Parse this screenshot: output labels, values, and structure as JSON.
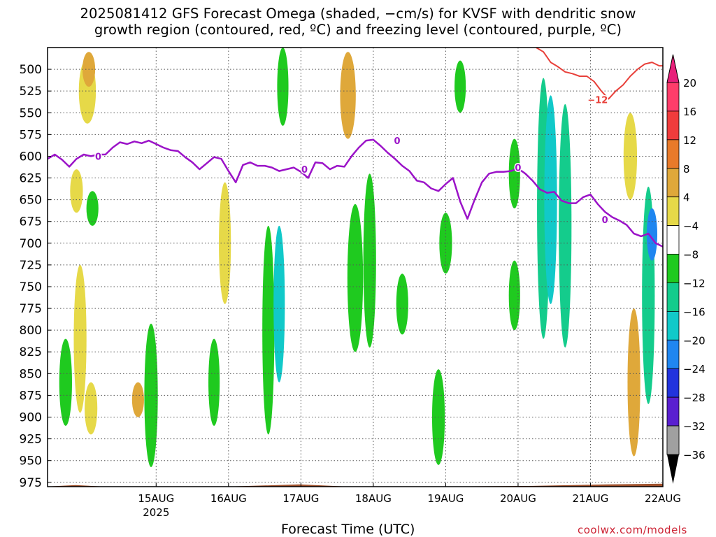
{
  "title": {
    "line1": "2025081412 GFS Forecast Omega (shaded, −cm/s) for KVSF with dendritic snow",
    "line2": "growth region (contoured, red, ºC) and freezing level (contoured, purple, ºC)"
  },
  "credit": "coolwx.com/models",
  "chart_data": {
    "type": "heatmap",
    "xlabel": "Forecast Time (UTC)",
    "ylabel": "",
    "x_ticks": [
      {
        "label": "15AUG",
        "sub": "2025",
        "day": 1
      },
      {
        "label": "16AUG",
        "sub": "",
        "day": 2
      },
      {
        "label": "17AUG",
        "sub": "",
        "day": 3
      },
      {
        "label": "18AUG",
        "sub": "",
        "day": 4
      },
      {
        "label": "19AUG",
        "sub": "",
        "day": 5
      },
      {
        "label": "20AUG",
        "sub": "",
        "day": 6
      },
      {
        "label": "21AUG",
        "sub": "",
        "day": 7
      },
      {
        "label": "22AUG",
        "sub": "",
        "day": 8
      }
    ],
    "xlim_days": [
      -0.5,
      8.0
    ],
    "ylim_hpa": [
      980,
      475
    ],
    "y_ticks": [
      500,
      525,
      550,
      575,
      600,
      625,
      650,
      675,
      700,
      725,
      750,
      775,
      800,
      825,
      850,
      875,
      900,
      925,
      950,
      975
    ],
    "grid": true,
    "colorbar": {
      "labels": [
        "20",
        "16",
        "12",
        "8",
        "4",
        "−4",
        "−8",
        "−12",
        "−16",
        "−20",
        "−24",
        "−28",
        "−32",
        "−36"
      ],
      "colors": [
        "#ff3d6a",
        "#f03c3c",
        "#e87a2a",
        "#dfa83a",
        "#e6d948",
        "#ffffff",
        "#1fca1f",
        "#14cc8c",
        "#11c9c9",
        "#1f86f0",
        "#2233dd",
        "#5a1fd0",
        "#9a10c8",
        "#a0a0a0"
      ],
      "top_arrow": "#e8207a",
      "bottom_arrow": "#000000"
    },
    "freezing_level": {
      "color": "#9b13c8",
      "label": "0",
      "label_points": [
        {
          "day": 0.2,
          "hpa": 600
        },
        {
          "day": 3.05,
          "hpa": 615
        },
        {
          "day": 4.33,
          "hpa": 582
        },
        {
          "day": 6.0,
          "hpa": 613
        },
        {
          "day": 7.2,
          "hpa": 673
        }
      ],
      "day": [
        -0.5,
        -0.4,
        -0.3,
        -0.2,
        -0.1,
        0.0,
        0.1,
        0.2,
        0.3,
        0.4,
        0.5,
        0.6,
        0.7,
        0.8,
        0.9,
        1.0,
        1.1,
        1.2,
        1.3,
        1.4,
        1.5,
        1.6,
        1.7,
        1.8,
        1.9,
        2.0,
        2.1,
        2.2,
        2.3,
        2.4,
        2.5,
        2.6,
        2.7,
        2.8,
        2.9,
        3.0,
        3.1,
        3.2,
        3.3,
        3.4,
        3.5,
        3.6,
        3.7,
        3.8,
        3.9,
        4.0,
        4.1,
        4.2,
        4.3,
        4.4,
        4.5,
        4.6,
        4.7,
        4.8,
        4.9,
        5.0,
        5.1,
        5.2,
        5.3,
        5.4,
        5.5,
        5.6,
        5.7,
        5.8,
        5.9,
        6.0,
        6.1,
        6.2,
        6.3,
        6.4,
        6.5,
        6.6,
        6.7,
        6.8,
        6.9,
        7.0,
        7.1,
        7.2,
        7.3,
        7.4,
        7.5,
        7.6,
        7.7,
        7.8,
        7.9,
        8.0
      ],
      "hpa": [
        603,
        598,
        604,
        612,
        603,
        598,
        600,
        598,
        598,
        590,
        584,
        586,
        583,
        585,
        582,
        586,
        590,
        593,
        594,
        601,
        607,
        615,
        608,
        601,
        603,
        617,
        630,
        610,
        607,
        611,
        611,
        613,
        617,
        615,
        613,
        618,
        625,
        607,
        608,
        615,
        611,
        612,
        600,
        590,
        582,
        581,
        588,
        596,
        603,
        611,
        617,
        628,
        630,
        637,
        640,
        632,
        625,
        652,
        672,
        650,
        630,
        620,
        618,
        618,
        617,
        614,
        620,
        628,
        638,
        642,
        641,
        651,
        654,
        654,
        647,
        644,
        655,
        664,
        670,
        674,
        679,
        689,
        692,
        689,
        700,
        704
      ]
    },
    "dgz_minus12": {
      "color": "#e8403a",
      "label": "−12",
      "label_points": [
        {
          "day": 7.1,
          "hpa": 535
        }
      ],
      "day": [
        6.25,
        6.35,
        6.45,
        6.55,
        6.65,
        6.75,
        6.85,
        6.95,
        7.05,
        7.15,
        7.25,
        7.35,
        7.45,
        7.55,
        7.65,
        7.75,
        7.85,
        7.95,
        8.0
      ],
      "hpa": [
        475,
        480,
        492,
        497,
        503,
        505,
        508,
        508,
        514,
        525,
        534,
        525,
        518,
        508,
        500,
        494,
        492,
        496,
        496
      ]
    },
    "surface_fill": "#a0522d",
    "omega_regions": [
      {
        "day": 0.05,
        "hpa": 525,
        "w": 0.12,
        "h": 75,
        "level": 4
      },
      {
        "day": 0.07,
        "hpa": 500,
        "w": 0.06,
        "h": 40,
        "level": 8
      },
      {
        "day": -0.1,
        "hpa": 640,
        "w": 0.06,
        "h": 50,
        "level": 4
      },
      {
        "day": 0.12,
        "hpa": 660,
        "w": 0.05,
        "h": 40,
        "level": -4
      },
      {
        "day": -0.25,
        "hpa": 860,
        "w": 0.06,
        "h": 100,
        "level": -4
      },
      {
        "day": -0.05,
        "hpa": 810,
        "w": 0.06,
        "h": 170,
        "level": 4
      },
      {
        "day": 0.1,
        "hpa": 890,
        "w": 0.06,
        "h": 60,
        "level": 4
      },
      {
        "day": 0.75,
        "hpa": 880,
        "w": 0.05,
        "h": 40,
        "level": 8
      },
      {
        "day": 0.93,
        "hpa": 875,
        "w": 0.07,
        "h": 165,
        "level": -4
      },
      {
        "day": 1.8,
        "hpa": 860,
        "w": 0.04,
        "h": 100,
        "level": -4
      },
      {
        "day": 1.95,
        "hpa": 700,
        "w": 0.05,
        "h": 140,
        "level": 4
      },
      {
        "day": 2.55,
        "hpa": 800,
        "w": 0.05,
        "h": 240,
        "level": -4
      },
      {
        "day": 2.7,
        "hpa": 770,
        "w": 0.04,
        "h": 180,
        "level": -12
      },
      {
        "day": 2.75,
        "hpa": 520,
        "w": 0.04,
        "h": 90,
        "level": -4
      },
      {
        "day": 3.65,
        "hpa": 530,
        "w": 0.1,
        "h": 100,
        "level": 8
      },
      {
        "day": 3.75,
        "hpa": 740,
        "w": 0.1,
        "h": 170,
        "level": -4
      },
      {
        "day": 3.95,
        "hpa": 720,
        "w": 0.06,
        "h": 200,
        "level": -4
      },
      {
        "day": 4.4,
        "hpa": 770,
        "w": 0.05,
        "h": 70,
        "level": -4
      },
      {
        "day": 5.2,
        "hpa": 520,
        "w": 0.04,
        "h": 60,
        "level": -4
      },
      {
        "day": 5.0,
        "hpa": 700,
        "w": 0.06,
        "h": 70,
        "level": -4
      },
      {
        "day": 4.9,
        "hpa": 900,
        "w": 0.06,
        "h": 110,
        "level": -4
      },
      {
        "day": 5.95,
        "hpa": 620,
        "w": 0.04,
        "h": 80,
        "level": -4
      },
      {
        "day": 5.95,
        "hpa": 760,
        "w": 0.04,
        "h": 80,
        "level": -4
      },
      {
        "day": 6.35,
        "hpa": 660,
        "w": 0.06,
        "h": 300,
        "level": -8
      },
      {
        "day": 6.45,
        "hpa": 650,
        "w": 0.06,
        "h": 240,
        "level": -12
      },
      {
        "day": 6.65,
        "hpa": 680,
        "w": 0.06,
        "h": 280,
        "level": -8
      },
      {
        "day": 7.55,
        "hpa": 600,
        "w": 0.07,
        "h": 100,
        "level": 4
      },
      {
        "day": 7.6,
        "hpa": 860,
        "w": 0.06,
        "h": 170,
        "level": 8
      },
      {
        "day": 7.8,
        "hpa": 760,
        "w": 0.06,
        "h": 250,
        "level": -8
      },
      {
        "day": 7.85,
        "hpa": 690,
        "w": 0.03,
        "h": 60,
        "level": -16
      }
    ]
  }
}
